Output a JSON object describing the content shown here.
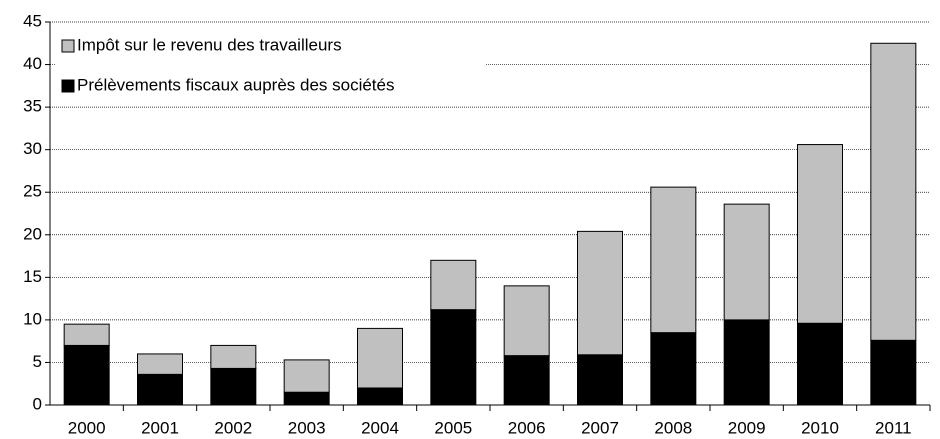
{
  "chart_data": {
    "type": "bar",
    "stacked": true,
    "categories": [
      "2000",
      "2001",
      "2002",
      "2003",
      "2004",
      "2005",
      "2006",
      "2007",
      "2008",
      "2009",
      "2010",
      "2011"
    ],
    "series": [
      {
        "name": "Impôt sur le revenu des travailleurs",
        "color": "#c0c0c0",
        "values": [
          2.5,
          2.4,
          2.7,
          3.8,
          7.0,
          5.8,
          8.2,
          14.5,
          17.1,
          13.6,
          21.0,
          34.9
        ]
      },
      {
        "name": "Prélèvements fiscaux auprès des sociétés",
        "color": "#000000",
        "values": [
          7.0,
          3.6,
          4.3,
          1.5,
          2.0,
          11.2,
          5.8,
          5.9,
          8.5,
          10.0,
          9.6,
          7.6
        ]
      }
    ],
    "ylim": [
      0,
      45
    ],
    "yticks": [
      0,
      5,
      10,
      15,
      20,
      25,
      30,
      35,
      40,
      45
    ],
    "grid": true,
    "legend": "top-left"
  }
}
